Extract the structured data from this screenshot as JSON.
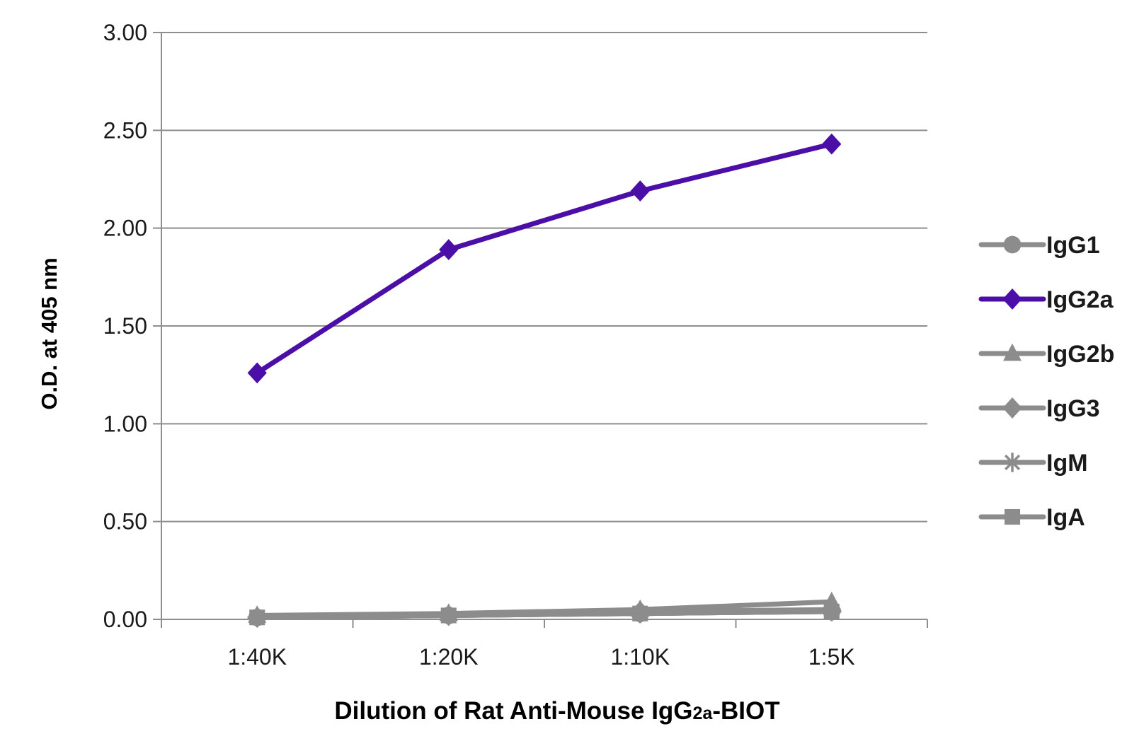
{
  "chart_data": {
    "type": "line",
    "title": "",
    "xlabel": "Dilution of Rat Anti-Mouse IgG2a-BIOT",
    "xlabel_parts": {
      "before": "Dilution of Rat Anti-Mouse IgG",
      "sub": "2a",
      "after": "-BIOT"
    },
    "ylabel": "O.D. at 405 nm",
    "categories": [
      "1:40K",
      "1:20K",
      "1:10K",
      "1:5K"
    ],
    "ylim": [
      0,
      3
    ],
    "yticks": [
      "0.00",
      "0.50",
      "1.00",
      "1.50",
      "2.00",
      "2.50",
      "3.00"
    ],
    "ytick_values": [
      0,
      0.5,
      1,
      1.5,
      2,
      2.5,
      3
    ],
    "grid": "horizontal",
    "legend_position": "right",
    "series": [
      {
        "name": "IgG1",
        "marker": "circle",
        "color": "#8c8c8c",
        "values": [
          0.01,
          0.02,
          0.03,
          0.04
        ]
      },
      {
        "name": "IgG2a",
        "marker": "diamond",
        "color": "#4b0fa8",
        "values": [
          1.26,
          1.89,
          2.19,
          2.43
        ]
      },
      {
        "name": "IgG2b",
        "marker": "triangle",
        "color": "#8c8c8c",
        "values": [
          0.02,
          0.03,
          0.05,
          0.09
        ]
      },
      {
        "name": "IgG3",
        "marker": "diamond",
        "color": "#8c8c8c",
        "values": [
          0.01,
          0.02,
          0.04,
          0.05
        ]
      },
      {
        "name": "IgM",
        "marker": "asterisk",
        "color": "#8c8c8c",
        "values": [
          0.01,
          0.02,
          0.03,
          0.04
        ]
      },
      {
        "name": "IgA",
        "marker": "square",
        "color": "#8c8c8c",
        "values": [
          0.01,
          0.02,
          0.03,
          0.04
        ]
      }
    ]
  }
}
